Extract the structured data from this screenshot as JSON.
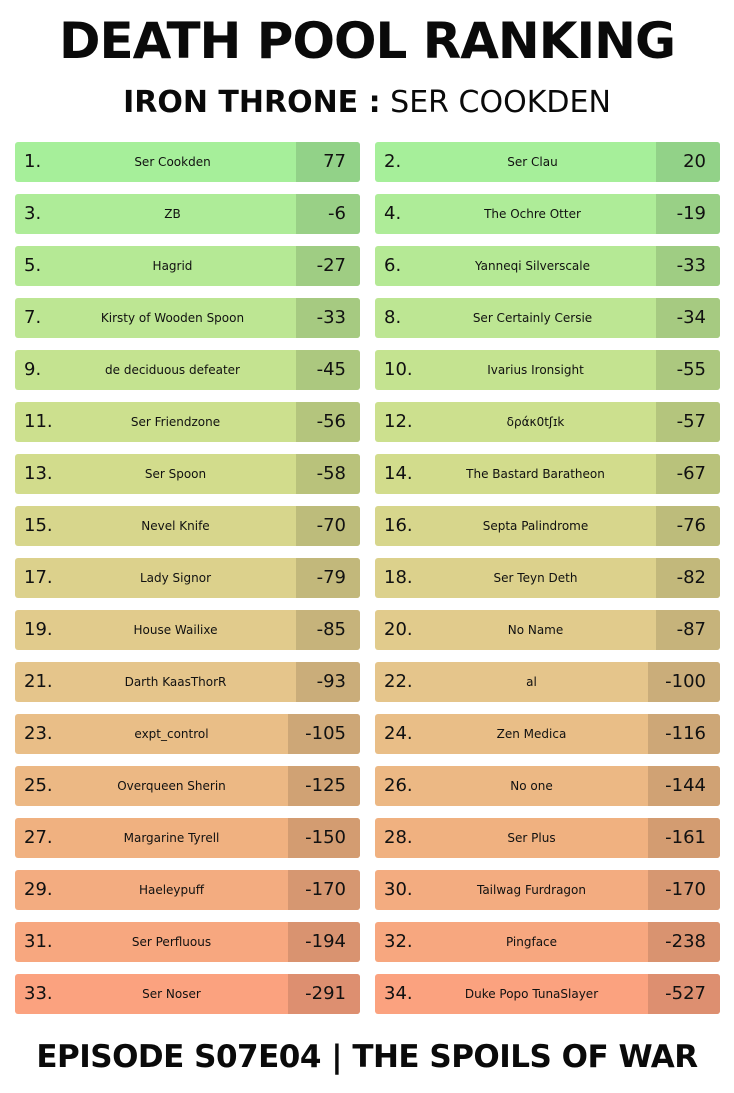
{
  "header": {
    "title": "DEATH POOL RANKING",
    "subtitle_bold": "IRON THRONE :",
    "subtitle_rest": "SER COOKDEN"
  },
  "footer": {
    "text": "EPISODE S07E04 | THE SPOILS OF WAR"
  },
  "colors": {
    "top": "#a6ef9a",
    "bottom": "#fba27f"
  },
  "rankings": [
    {
      "rank": "1.",
      "name": "Ser Cookden",
      "score": "77"
    },
    {
      "rank": "2.",
      "name": "Ser Clau",
      "score": "20"
    },
    {
      "rank": "3.",
      "name": "ZB",
      "score": "-6"
    },
    {
      "rank": "4.",
      "name": "The Ochre Otter",
      "score": "-19"
    },
    {
      "rank": "5.",
      "name": "Hagrid",
      "score": "-27"
    },
    {
      "rank": "6.",
      "name": "Yanneqi Silverscale",
      "score": "-33"
    },
    {
      "rank": "7.",
      "name": "Kirsty of Wooden Spoon",
      "score": "-33"
    },
    {
      "rank": "8.",
      "name": "Ser Certainly Cersie",
      "score": "-34"
    },
    {
      "rank": "9.",
      "name": "de deciduous defeater",
      "score": "-45"
    },
    {
      "rank": "10.",
      "name": "Ivarius Ironsight",
      "score": "-55"
    },
    {
      "rank": "11.",
      "name": "Ser Friendzone",
      "score": "-56"
    },
    {
      "rank": "12.",
      "name": "δράκ0tʃɪk",
      "score": "-57"
    },
    {
      "rank": "13.",
      "name": "Ser Spoon",
      "score": "-58"
    },
    {
      "rank": "14.",
      "name": "The Bastard Baratheon",
      "score": "-67"
    },
    {
      "rank": "15.",
      "name": "Nevel Knife",
      "score": "-70"
    },
    {
      "rank": "16.",
      "name": "Septa Palindrome",
      "score": "-76"
    },
    {
      "rank": "17.",
      "name": "Lady Signor",
      "score": "-79"
    },
    {
      "rank": "18.",
      "name": "Ser Teyn Deth",
      "score": "-82"
    },
    {
      "rank": "19.",
      "name": "House Wailixe",
      "score": "-85"
    },
    {
      "rank": "20.",
      "name": "No Name",
      "score": "-87"
    },
    {
      "rank": "21.",
      "name": "Darth KaasThorR",
      "score": "-93"
    },
    {
      "rank": "22.",
      "name": "al",
      "score": "-100"
    },
    {
      "rank": "23.",
      "name": "expt_control",
      "score": "-105"
    },
    {
      "rank": "24.",
      "name": "Zen Medica",
      "score": "-116"
    },
    {
      "rank": "25.",
      "name": "Overqueen Sherin",
      "score": "-125"
    },
    {
      "rank": "26.",
      "name": "No one",
      "score": "-144"
    },
    {
      "rank": "27.",
      "name": "Margarine Tyrell",
      "score": "-150"
    },
    {
      "rank": "28.",
      "name": "Ser Plus",
      "score": "-161"
    },
    {
      "rank": "29.",
      "name": "Haeleypuff",
      "score": "-170"
    },
    {
      "rank": "30.",
      "name": "Tailwag Furdragon",
      "score": "-170"
    },
    {
      "rank": "31.",
      "name": "Ser Perfluous",
      "score": "-194"
    },
    {
      "rank": "32.",
      "name": "Pingface",
      "score": "-238"
    },
    {
      "rank": "33.",
      "name": "Ser Noser",
      "score": "-291"
    },
    {
      "rank": "34.",
      "name": "Duke Popo TunaSlayer",
      "score": "-527"
    }
  ]
}
